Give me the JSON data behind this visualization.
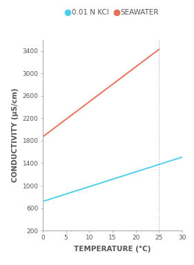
{
  "xlabel": "TEMPERATURE (°C)",
  "ylabel": "CONDUCTIVITY (μS/cm)",
  "xlim": [
    0,
    30
  ],
  "ylim": [
    200,
    3600
  ],
  "yticks": [
    200,
    600,
    1000,
    1400,
    1800,
    2200,
    2600,
    3000,
    3400
  ],
  "xticks": [
    0,
    5,
    10,
    15,
    20,
    25,
    30
  ],
  "kcl_color": "#4DCFEA",
  "seawater_color": "#E8705A",
  "kcl_x0": 0,
  "kcl_y0": 718,
  "kcl_x1": 30,
  "kcl_y1": 1510,
  "seawater_x0": 0,
  "seawater_y0": 1870,
  "seawater_x1": 25,
  "seawater_y1": 3430,
  "dotted_x": 25,
  "legend_kcl": "0.01 N KCl",
  "legend_seawater": "SEAWATER",
  "label_fontsize": 7.5,
  "tick_fontsize": 6.5,
  "legend_fontsize": 7.5,
  "axis_color": "#aaaaaa",
  "text_color": "#555555"
}
